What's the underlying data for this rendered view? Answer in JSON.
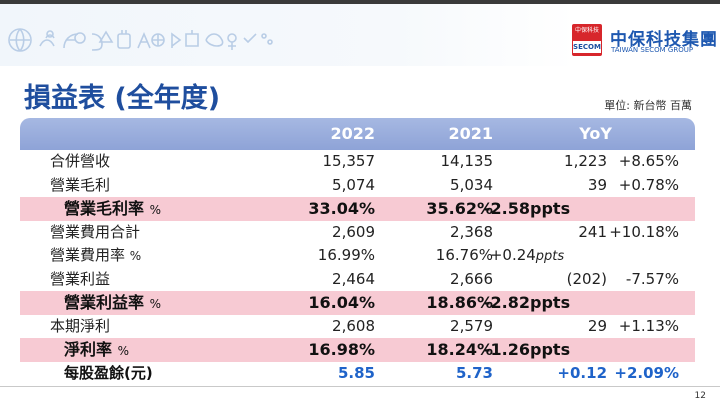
{
  "logo": {
    "badge_top": "中保科技",
    "badge_bottom": "SECOM",
    "name": "中保科技集團",
    "name_en": "TAIWAN SECOM GROUP"
  },
  "title": "損益表 (全年度)",
  "unit": "單位: 新台幣 百萬",
  "headers": {
    "y2022": "2022",
    "y2021": "2021",
    "yoy": "YoY"
  },
  "rows": [
    {
      "label": "合併營收",
      "v2022": "15,357",
      "v2021": "14,135",
      "diff": "1,223",
      "pct": "+8.65%"
    },
    {
      "label": "營業毛利",
      "v2022": "5,074",
      "v2021": "5,034",
      "diff": "39",
      "pct": "+0.78%"
    },
    {
      "label": "營業毛利率",
      "suffix": "%",
      "v2022": "33.04%",
      "v2021": "35.62%",
      "yoy": "-2.58ppts"
    },
    {
      "label": "營業費用合計",
      "v2022": "2,609",
      "v2021": "2,368",
      "diff": "241",
      "pct": "+10.18%"
    },
    {
      "label": "營業費用率",
      "suffix": "%",
      "v2022": "16.99%",
      "v2021": "16.76%",
      "yoy_value": "+0.24",
      "yoy_unit": "ppts"
    },
    {
      "label": "營業利益",
      "v2022": "2,464",
      "v2021": "2,666",
      "diff": "(202)",
      "pct": "-7.57%"
    },
    {
      "label": "營業利益率",
      "suffix": "%",
      "v2022": "16.04%",
      "v2021": "18.86%",
      "yoy": "-2.82ppts"
    },
    {
      "label": "本期淨利",
      "v2022": "2,608",
      "v2021": "2,579",
      "diff": "29",
      "pct": "+1.13%"
    },
    {
      "label": "淨利率",
      "suffix": "%",
      "v2022": "16.98%",
      "v2021": "18.24%",
      "yoy": "-1.26ppts"
    },
    {
      "label": "每股盈餘(元)",
      "v2022": "5.85",
      "v2021": "5.73",
      "diff": "+0.12",
      "pct": "+2.09%"
    }
  ],
  "page_number": "12",
  "colors": {
    "title": "#1f4e9e",
    "header_bg": "#8ea3d7",
    "highlight_row": "#f7cad3",
    "eps_value": "#1f63c9",
    "logo_red": "#d7262b"
  }
}
